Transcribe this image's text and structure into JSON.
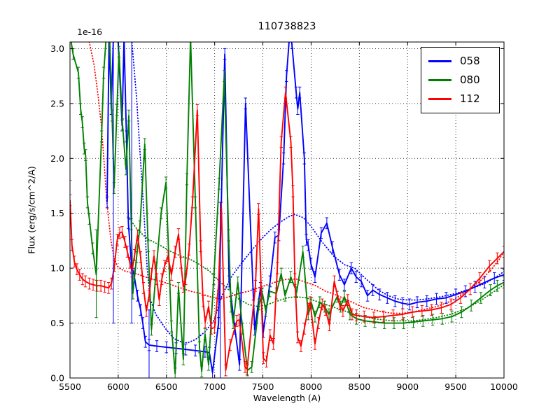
{
  "figure": {
    "title": "110738823",
    "offset_label": "1e-16",
    "xlabel": "Wavelength (A)",
    "ylabel": "Flux (erg/s/cm^2/A)"
  },
  "chart_data": {
    "type": "line",
    "title": "110738823",
    "xlabel": "Wavelength (A)",
    "ylabel": "Flux (erg/s/cm^2/A)",
    "y_offset_label": "1e-16",
    "y_unit_scale": 1e-16,
    "xlim": [
      5500,
      10000
    ],
    "ylim": [
      0,
      3.06
    ],
    "xticks": [
      5500,
      6000,
      6500,
      7000,
      7500,
      8000,
      8500,
      9000,
      9500,
      10000
    ],
    "yticks": [
      0,
      0.5,
      1,
      1.5,
      2,
      2.5,
      3
    ],
    "grid": true,
    "grid_style": "dotted",
    "legend": {
      "position": "upper right",
      "entries": [
        {
          "label": "058",
          "color": "#0000ff"
        },
        {
          "label": "080",
          "color": "#008000"
        },
        {
          "label": "112",
          "color": "#ff0000"
        }
      ]
    },
    "series": [
      {
        "name": "058",
        "color": "#0000ff",
        "line": "solid",
        "errorbars": true,
        "err": 0.05,
        "x": [
          5885,
          5905,
          5928,
          5950,
          5995,
          6040,
          6060,
          6085,
          6105,
          6140,
          6162,
          6200,
          6232,
          6255,
          6282,
          6320,
          6400,
          6500,
          6600,
          6700,
          6800,
          6900,
          6945,
          6978,
          7040,
          7105,
          7150,
          7210,
          7258,
          7320,
          7400,
          7415,
          7475,
          7505,
          7575,
          7625,
          7665,
          7715,
          7745,
          7775,
          7800,
          7845,
          7862,
          7882,
          7930,
          7950,
          7970,
          7998,
          8040,
          8105,
          8163,
          8221,
          8294,
          8345,
          8417,
          8467,
          8520,
          8585,
          8640,
          8710,
          8790,
          8870,
          8950,
          9020,
          9100,
          9200,
          9300,
          9400,
          9500,
          9600,
          9700,
          9800,
          9900,
          10000
        ],
        "y": [
          1.6,
          3.1,
          2.45,
          3.1,
          3.15,
          2.3,
          3.1,
          2.2,
          1.41,
          1.0,
          0.95,
          0.75,
          0.62,
          0.5,
          0.33,
          0.3,
          0.29,
          0.28,
          0.27,
          0.26,
          0.25,
          0.24,
          0.23,
          0.05,
          0.5,
          2.95,
          0.88,
          0.45,
          0.12,
          2.5,
          0.76,
          0.44,
          0.82,
          0.42,
          0.88,
          1.28,
          1.3,
          2.0,
          2.75,
          3.1,
          3.05,
          2.6,
          2.45,
          2.6,
          2.0,
          1.26,
          1.21,
          1.04,
          0.92,
          1.32,
          1.41,
          1.19,
          0.94,
          0.85,
          1.0,
          0.92,
          0.88,
          0.75,
          0.8,
          0.76,
          0.73,
          0.7,
          0.68,
          0.67,
          0.69,
          0.7,
          0.72,
          0.73,
          0.76,
          0.79,
          0.83,
          0.87,
          0.91,
          0.94
        ]
      },
      {
        "name": "080",
        "color": "#008000",
        "line": "solid",
        "errorbars": true,
        "err": 0.05,
        "x": [
          5505,
          5532,
          5587,
          5610,
          5628,
          5647,
          5662,
          5681,
          5700,
          5735,
          5772,
          5827,
          5849,
          5875,
          5910,
          5936,
          5957,
          5986,
          6008,
          6044,
          6081,
          6110,
          6135,
          6152,
          6190,
          6225,
          6275,
          6310,
          6345,
          6395,
          6445,
          6495,
          6552,
          6590,
          6625,
          6675,
          6712,
          6750,
          6800,
          6843,
          6865,
          6900,
          6937,
          6990,
          7046,
          7100,
          7145,
          7170,
          7192,
          7240,
          7290,
          7340,
          7385,
          7460,
          7495,
          7530,
          7570,
          7640,
          7690,
          7730,
          7790,
          7850,
          7915,
          7970,
          8005,
          8040,
          8090,
          8140,
          8185,
          8270,
          8306,
          8345,
          8403,
          8470,
          8560,
          8660,
          8760,
          8860,
          8960,
          9060,
          9160,
          9260,
          9360,
          9460,
          9560,
          9660,
          9760,
          9860,
          9930,
          10000
        ],
        "y": [
          3.1,
          2.95,
          2.78,
          2.45,
          2.33,
          2.09,
          2.03,
          1.6,
          1.45,
          1.18,
          0.94,
          2.2,
          2.78,
          3.1,
          3.12,
          2.39,
          1.73,
          2.44,
          2.97,
          2.31,
          1.9,
          2.39,
          1.4,
          0.77,
          1.1,
          1.38,
          2.13,
          1.2,
          0.44,
          1.0,
          1.5,
          1.78,
          0.47,
          0.04,
          0.82,
          0.17,
          1.81,
          3.1,
          1.6,
          0.28,
          0.06,
          0.4,
          0.12,
          0.9,
          1.77,
          2.75,
          1.3,
          0.65,
          0.5,
          0.87,
          0.45,
          0.07,
          0.1,
          0.67,
          0.77,
          0.61,
          0.79,
          0.77,
          0.95,
          0.75,
          0.92,
          0.78,
          1.15,
          0.58,
          0.68,
          0.56,
          0.69,
          0.65,
          0.58,
          0.74,
          0.65,
          0.74,
          0.58,
          0.54,
          0.52,
          0.51,
          0.5,
          0.5,
          0.5,
          0.51,
          0.52,
          0.53,
          0.54,
          0.56,
          0.6,
          0.66,
          0.73,
          0.8,
          0.84,
          0.87
        ]
      },
      {
        "name": "112",
        "color": "#ff0000",
        "line": "solid",
        "errorbars": true,
        "err": 0.05,
        "x": [
          5500,
          5520,
          5545,
          5572,
          5600,
          5630,
          5660,
          5700,
          5740,
          5780,
          5820,
          5860,
          5900,
          5930,
          5960,
          5990,
          6015,
          6040,
          6070,
          6095,
          6120,
          6142,
          6170,
          6200,
          6232,
          6262,
          6292,
          6320,
          6345,
          6371,
          6400,
          6425,
          6452,
          6480,
          6516,
          6552,
          6590,
          6625,
          6650,
          6675,
          6700,
          6735,
          6770,
          6820,
          6855,
          6880,
          6902,
          6937,
          6966,
          7000,
          7040,
          7070,
          7115,
          7160,
          7230,
          7256,
          7315,
          7336,
          7423,
          7455,
          7505,
          7536,
          7574,
          7610,
          7650,
          7690,
          7735,
          7790,
          7812,
          7832,
          7860,
          7895,
          7930,
          7968,
          7990,
          8040,
          8075,
          8115,
          8150,
          8190,
          8240,
          8295,
          8330,
          8380,
          8425,
          8470,
          8550,
          8650,
          8750,
          8850,
          8950,
          9050,
          9150,
          9250,
          9350,
          9450,
          9550,
          9650,
          9750,
          9850,
          9930,
          10000
        ],
        "y": [
          1.62,
          1.21,
          1.06,
          0.99,
          0.94,
          0.9,
          0.88,
          0.86,
          0.85,
          0.84,
          0.84,
          0.83,
          0.82,
          0.86,
          1.02,
          1.26,
          1.32,
          1.33,
          1.24,
          1.15,
          1.05,
          0.97,
          1.12,
          1.3,
          1.1,
          0.82,
          0.61,
          0.75,
          0.95,
          1.11,
          0.9,
          0.71,
          0.9,
          1.02,
          1.11,
          0.94,
          1.15,
          1.31,
          1.05,
          0.83,
          0.9,
          1.17,
          1.6,
          2.44,
          1.2,
          0.7,
          0.51,
          0.65,
          0.45,
          0.46,
          0.85,
          1.55,
          0.07,
          0.3,
          0.52,
          0.53,
          0.1,
          0.08,
          0.84,
          1.54,
          0.18,
          0.15,
          0.39,
          0.31,
          1.0,
          2.15,
          2.6,
          2.15,
          1.7,
          0.9,
          0.37,
          0.29,
          0.45,
          0.63,
          0.69,
          0.31,
          0.5,
          0.67,
          0.62,
          0.48,
          0.88,
          0.67,
          0.61,
          0.71,
          0.58,
          0.57,
          0.56,
          0.55,
          0.56,
          0.57,
          0.58,
          0.6,
          0.61,
          0.62,
          0.64,
          0.67,
          0.73,
          0.81,
          0.91,
          1.02,
          1.09,
          1.15
        ]
      },
      {
        "name": "058 model",
        "color": "#0000ff",
        "line": "dotted",
        "errorbars": false,
        "x": [
          6140,
          6190,
          6230,
          6270,
          6300,
          6330,
          6390,
          6490,
          6575,
          6650,
          6720,
          6800,
          6900,
          6990,
          7080,
          7180,
          7300,
          7400,
          7500,
          7580,
          7680,
          7770,
          7830,
          7920,
          8000,
          8113,
          8234,
          8350,
          8452,
          8548,
          8610,
          8700,
          8800,
          8900,
          9000,
          9100,
          9200,
          9350,
          9500,
          9650,
          9800,
          9920,
          10000
        ],
        "y": [
          3.08,
          2.55,
          2.0,
          1.45,
          1.0,
          0.72,
          0.58,
          0.45,
          0.36,
          0.33,
          0.32,
          0.35,
          0.42,
          0.52,
          0.76,
          0.93,
          1.07,
          1.18,
          1.28,
          1.35,
          1.42,
          1.47,
          1.49,
          1.46,
          1.38,
          1.24,
          1.11,
          1.03,
          1.0,
          0.92,
          0.87,
          0.8,
          0.75,
          0.72,
          0.71,
          0.71,
          0.72,
          0.74,
          0.77,
          0.81,
          0.86,
          0.92,
          0.97
        ]
      },
      {
        "name": "080 model",
        "color": "#008000",
        "line": "dotted",
        "errorbars": false,
        "x": [
          6100,
          6200,
          6300,
          6430,
          6550,
          6650,
          6750,
          6850,
          6950,
          7050,
          7150,
          7250,
          7350,
          7450,
          7550,
          7650,
          7750,
          7850,
          7950,
          8050,
          8150,
          8250,
          8350,
          8450,
          8550,
          8650,
          8750,
          8850,
          8950,
          9050,
          9150,
          9300,
          9450,
          9600,
          9750,
          9900,
          10000
        ],
        "y": [
          1.47,
          1.35,
          1.27,
          1.21,
          1.15,
          1.11,
          1.08,
          1.03,
          0.97,
          0.88,
          0.8,
          0.72,
          0.67,
          0.65,
          0.67,
          0.7,
          0.73,
          0.74,
          0.73,
          0.7,
          0.67,
          0.64,
          0.61,
          0.58,
          0.56,
          0.54,
          0.53,
          0.52,
          0.52,
          0.52,
          0.53,
          0.55,
          0.58,
          0.63,
          0.7,
          0.79,
          0.85
        ]
      },
      {
        "name": "112 model",
        "color": "#ff0000",
        "line": "dotted",
        "errorbars": false,
        "x": [
          5700,
          5750,
          5790,
          5825,
          5855,
          5880,
          5900,
          5925,
          5955,
          5990,
          6030,
          6080,
          6150,
          6250,
          6350,
          6450,
          6550,
          6650,
          6750,
          6850,
          6950,
          7050,
          7150,
          7250,
          7350,
          7450,
          7550,
          7650,
          7750,
          7850,
          7950,
          8050,
          8150,
          8250,
          8350,
          8450,
          8550,
          8650,
          8750,
          8850,
          8950,
          9050,
          9150,
          9300,
          9450,
          9600,
          9750,
          9870,
          9950,
          10000
        ],
        "y": [
          3.06,
          2.85,
          2.58,
          2.3,
          1.95,
          1.62,
          1.45,
          1.25,
          1.1,
          1.02,
          0.99,
          0.97,
          0.96,
          0.93,
          0.9,
          0.88,
          0.85,
          0.82,
          0.79,
          0.77,
          0.74,
          0.72,
          0.74,
          0.77,
          0.79,
          0.82,
          0.85,
          0.88,
          0.9,
          0.9,
          0.87,
          0.84,
          0.79,
          0.76,
          0.72,
          0.68,
          0.64,
          0.62,
          0.6,
          0.59,
          0.59,
          0.6,
          0.62,
          0.65,
          0.7,
          0.78,
          0.88,
          0.99,
          1.08,
          1.15
        ]
      }
    ],
    "large_errorbars": [
      {
        "series": "058",
        "x": 5950,
        "y_low": 0.5,
        "y_high": 3.06
      },
      {
        "series": "058",
        "x": 6140,
        "y_low": 0.5,
        "y_high": 3.06
      },
      {
        "series": "058",
        "x": 6320,
        "y_low": 0.0,
        "y_high": 0.62
      },
      {
        "series": "058",
        "x": 7058,
        "y_low": 0.0,
        "y_high": 1.6
      },
      {
        "series": "080",
        "x": 5772,
        "y_low": 0.55,
        "y_high": 1.35
      },
      {
        "series": "112",
        "x": 5500,
        "y_low": 1.45,
        "y_high": 1.8
      }
    ]
  }
}
